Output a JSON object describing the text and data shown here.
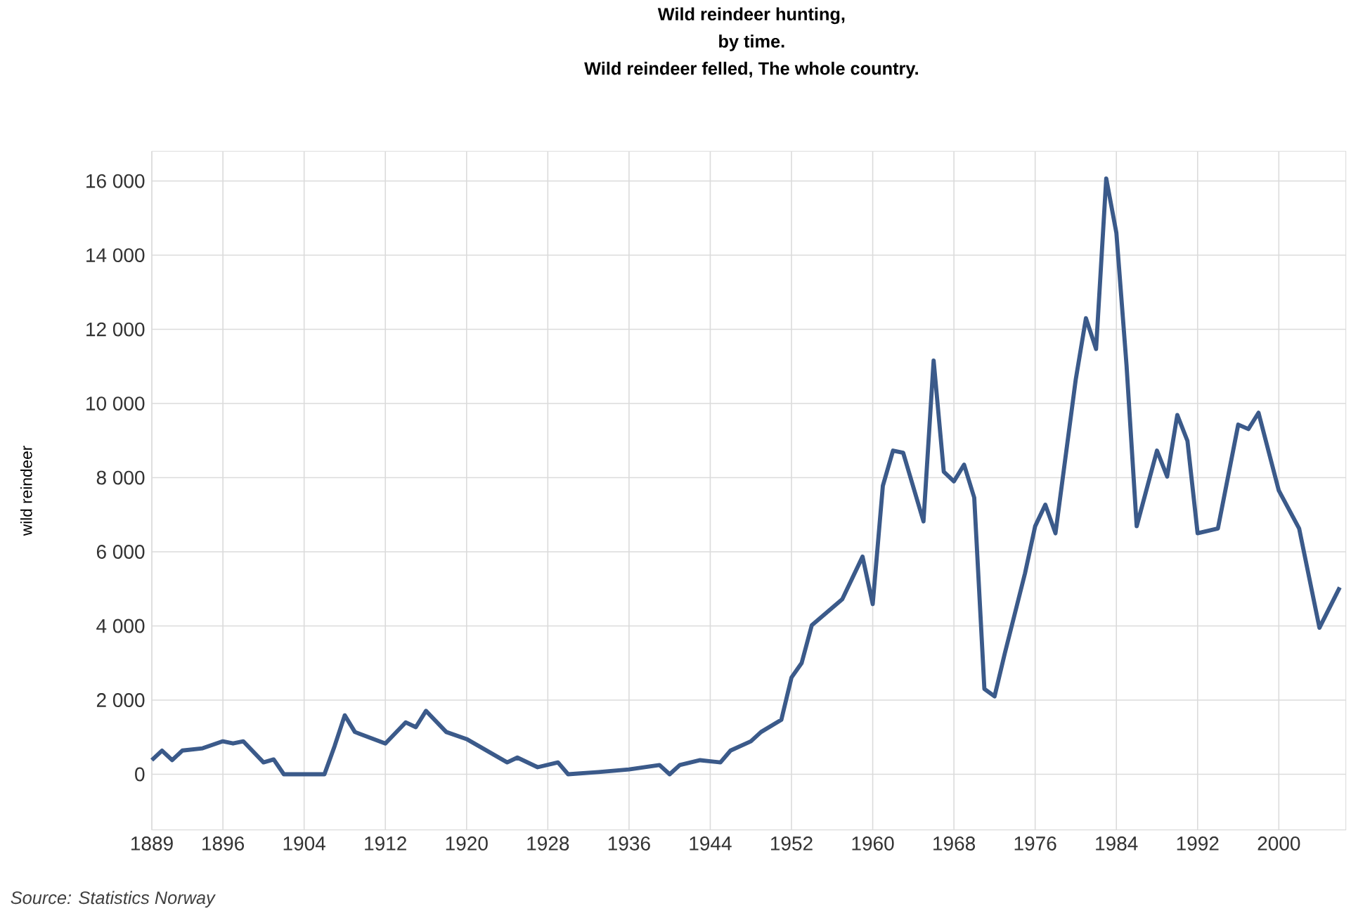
{
  "chart_data": {
    "type": "line",
    "title": "Wild reindeer hunting,\nby time.",
    "subtitle": "Wild reindeer felled, The whole country.",
    "ylabel": "wild reindeer",
    "annotations": [
      "*Source: Statistics Norway*"
    ],
    "x": [
      1889,
      1890,
      1891,
      1892,
      1894,
      1896,
      1897,
      1898,
      1900,
      1901,
      1902,
      1906,
      1907,
      1908,
      1909,
      1912,
      1914,
      1915,
      1916,
      1918,
      1920,
      1924,
      1925,
      1927,
      1929,
      1930,
      1933,
      1936,
      1939,
      1940,
      1941,
      1943,
      1945,
      1946,
      1948,
      1949,
      1951,
      1952,
      1953,
      1954,
      1957,
      1959,
      1960,
      1961,
      1962,
      1963,
      1965,
      1966,
      1967,
      1968,
      1969,
      1970,
      1971,
      1972,
      1973,
      1975,
      1976,
      1977,
      1978,
      1980,
      1981,
      1982,
      1983,
      1984,
      1985,
      1986,
      1988,
      1989,
      1990,
      1991,
      1992,
      1994,
      1996,
      1997,
      1998,
      2000,
      2002,
      2004,
      2006
    ],
    "series": [
      {
        "color": "#3b5a8a",
        "values": [
          380,
          640,
          380,
          640,
          700,
          890,
          830,
          890,
          320,
          400,
          0,
          0,
          760,
          1590,
          1140,
          830,
          1400,
          1270,
          1710,
          1140,
          950,
          320,
          450,
          190,
          320,
          0,
          60,
          130,
          250,
          0,
          250,
          380,
          320,
          640,
          890,
          1140,
          1470,
          2610,
          3000,
          4020,
          4720,
          5870,
          4590,
          7780,
          8730,
          8670,
          6820,
          11160,
          8160,
          7900,
          8350,
          7460,
          2300,
          2100,
          3250,
          5420,
          6690,
          7270,
          6500,
          10650,
          12300,
          11470,
          16070,
          14600,
          11030,
          6690,
          8730,
          8030,
          9690,
          8990,
          6500,
          6630,
          9430,
          9310,
          9750,
          7650,
          6630,
          3950,
          5040
        ]
      }
    ],
    "xlim": [
      1889,
      2006.6
    ],
    "xticks": [
      1889,
      1896,
      1904,
      1912,
      1920,
      1928,
      1936,
      1944,
      1952,
      1960,
      1968,
      1976,
      1984,
      1992,
      2000
    ],
    "ylim": [
      -1500,
      16800
    ],
    "yticks": [
      0,
      {
        "value": 2000,
        "label": "2 000"
      },
      {
        "value": 4000,
        "label": "4 000"
      },
      {
        "value": 6000,
        "label": "6 000"
      },
      {
        "value": 8000,
        "label": "8 000"
      },
      {
        "value": 10000,
        "label": "10 000"
      },
      {
        "value": 12000,
        "label": "12 000"
      },
      {
        "value": 14000,
        "label": "14 000"
      },
      {
        "value": 16000,
        "label": "16 000"
      }
    ],
    "grid": true,
    "line_style": "solid"
  }
}
